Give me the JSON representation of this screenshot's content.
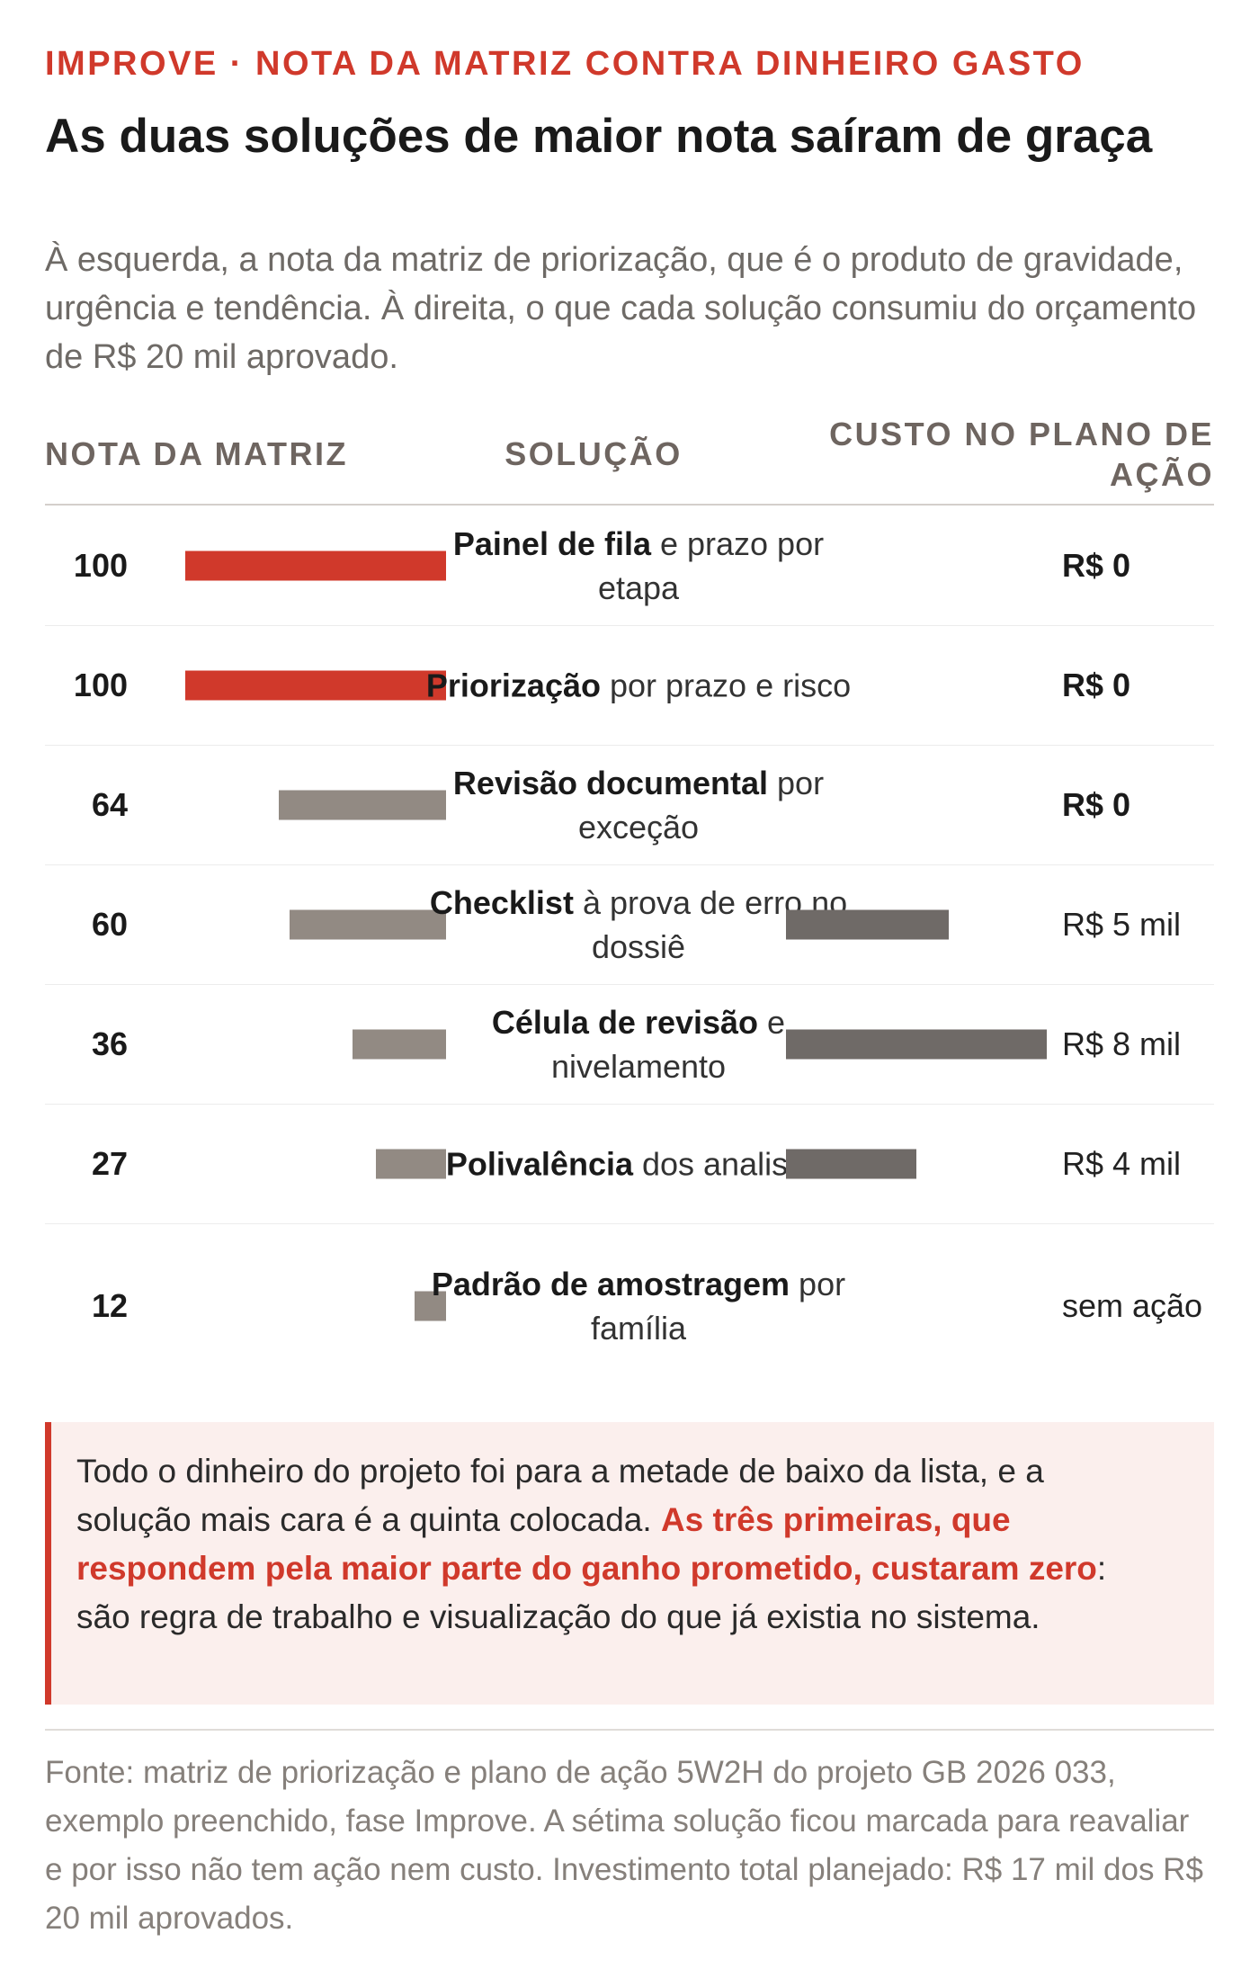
{
  "kicker": "IMPROVE · NOTA DA MATRIZ CONTRA DINHEIRO GASTO",
  "title": "As duas soluções de maior nota saíram de graça",
  "subtitle": "À esquerda, a nota da matriz de priorização, que é o produto de gravidade, urgência e tendência. À direita, o que cada solução consumiu do orçamento de R$ 20 mil aprovado.",
  "columns": {
    "score": "NOTA DA MATRIZ",
    "solution": "SOLUÇÃO",
    "cost": "CUSTO NO PLANO DE AÇÃO"
  },
  "colors": {
    "accent": "#d0392b",
    "score_bar_muted": "#928a83",
    "cost_bar": "#6f6a67",
    "callout_bg": "#fbefed"
  },
  "chart_data": {
    "type": "bar",
    "categories": [
      "Painel de fila e prazo por etapa",
      "Priorização por prazo e risco",
      "Revisão documental por exceção",
      "Checklist à prova de erro no dossiê",
      "Célula de revisão e nivelamento",
      "Polivalência dos analistas",
      "Padrão de amostragem por família"
    ],
    "series": [
      {
        "values": [
          100,
          100,
          64,
          60,
          36,
          27,
          12
        ]
      },
      {
        "values": [
          0,
          0,
          0,
          5,
          8,
          4,
          null
        ]
      }
    ],
    "score_xlim": [
      0,
      100
    ],
    "cost_xlim": [
      0,
      8
    ],
    "highlighted": [
      true,
      true,
      false,
      false,
      false,
      false,
      false
    ],
    "cost_labels": [
      "R$ 0",
      "R$ 0",
      "R$ 0",
      "R$ 5 mil",
      "R$ 8 mil",
      "R$ 4 mil",
      "sem ação"
    ],
    "rows": [
      {
        "bold": "Painel de fila",
        "rest": " e prazo por etapa"
      },
      {
        "bold": "Priorização",
        "rest": " por prazo e risco"
      },
      {
        "bold": "Revisão documental",
        "rest": " por exceção"
      },
      {
        "bold": "Checklist",
        "rest": " à prova de erro no dossiê"
      },
      {
        "bold": "Célula de revisão",
        "rest": " e nivelamento"
      },
      {
        "bold": "Polivalência",
        "rest": " dos analistas"
      },
      {
        "bold": "Padrão de amostragem",
        "rest": " por família"
      }
    ]
  },
  "callout": {
    "before": "Todo o dinheiro do projeto foi para a metade de baixo da lista, e a solução mais cara é a quinta colocada. ",
    "highlight": "As três primeiras, que respondem pela maior parte do ganho prometido, custaram zero",
    "after": ": são regra de trabalho e visualização do que já existia no sistema."
  },
  "source": "Fonte: matriz de priorização e plano de ação 5W2H do projeto GB 2026 033, exemplo preenchido, fase Improve. A sétima solução ficou marcada para reavaliar e por isso não tem ação nem custo. Investimento total planejado: R$ 17 mil dos R$ 20 mil aprovados."
}
